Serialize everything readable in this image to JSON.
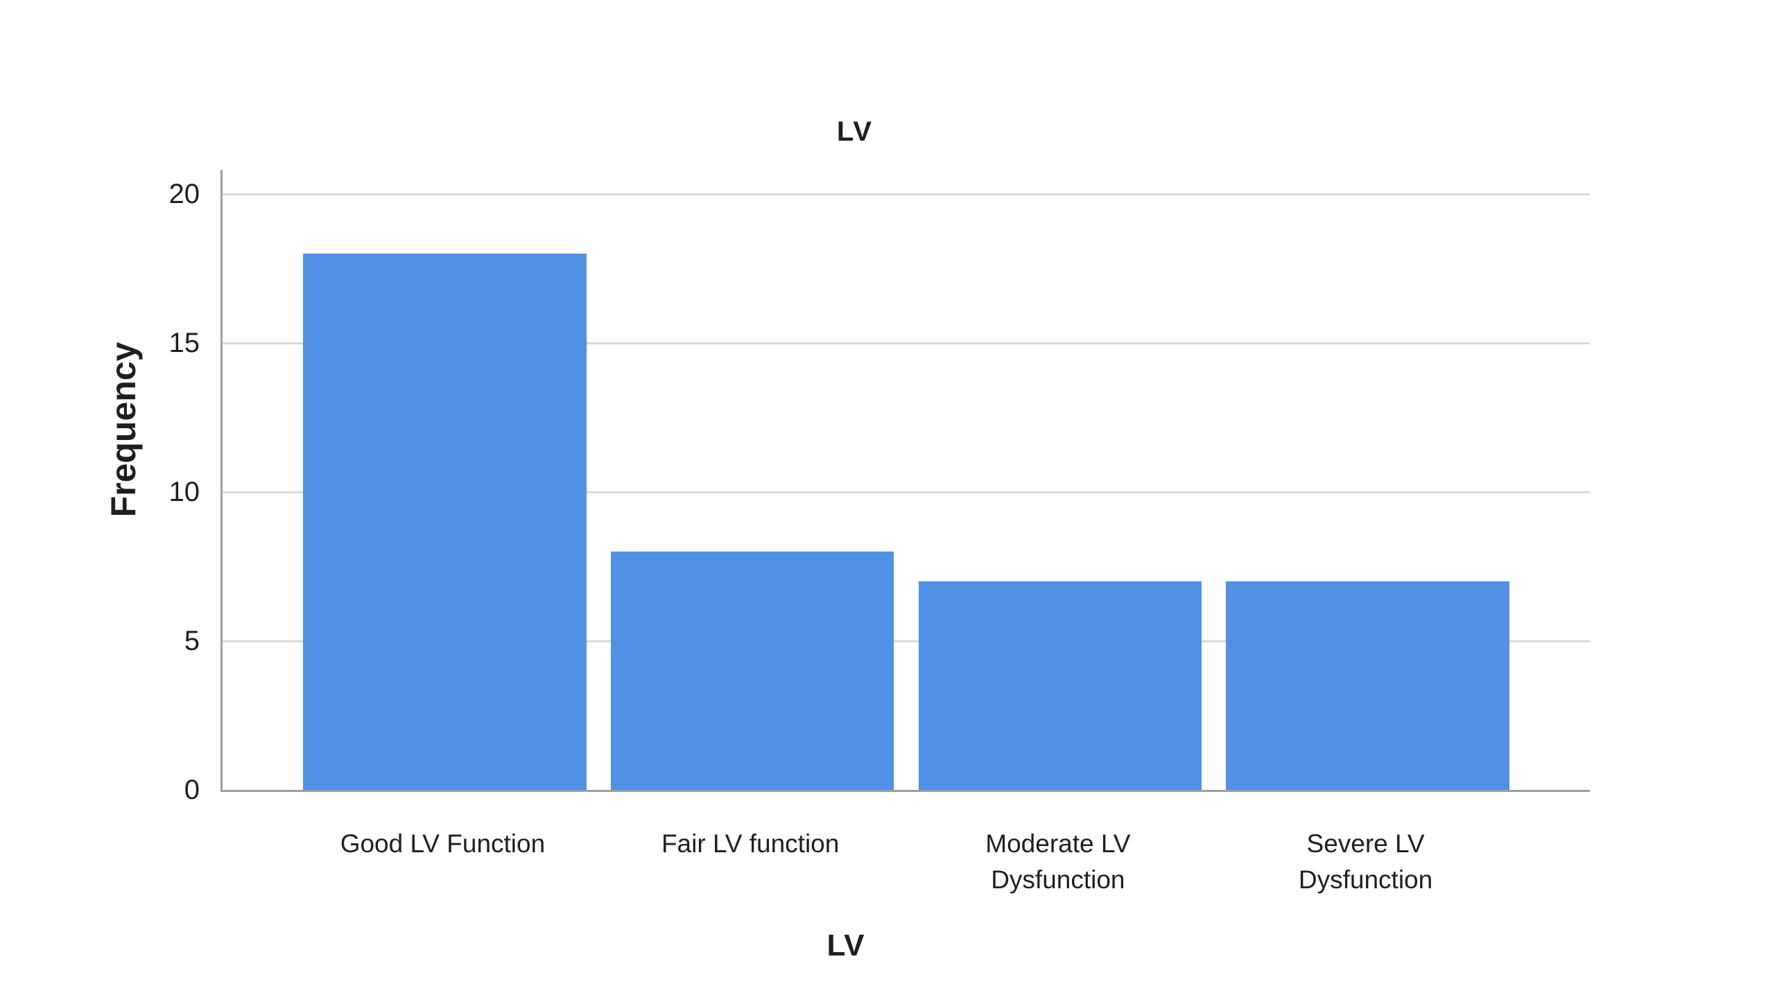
{
  "chart_data": {
    "type": "bar",
    "title": "LV",
    "xlabel": "LV",
    "ylabel": "Frequency",
    "categories": [
      "Good LV Function",
      "Fair LV function",
      "Moderate LV\nDysfunction",
      "Severe LV\nDysfunction"
    ],
    "values": [
      18,
      8,
      7,
      7
    ],
    "ylim": [
      0,
      20
    ],
    "yticks": [
      0,
      5,
      10,
      15,
      20
    ],
    "grid": true,
    "legend": "none",
    "colors": {
      "bar": "#5191e5",
      "gridline": "#d9d9d9",
      "axis_line": "#9e9e9e",
      "text": "#1f1f1f",
      "background": "#ffffff"
    }
  }
}
